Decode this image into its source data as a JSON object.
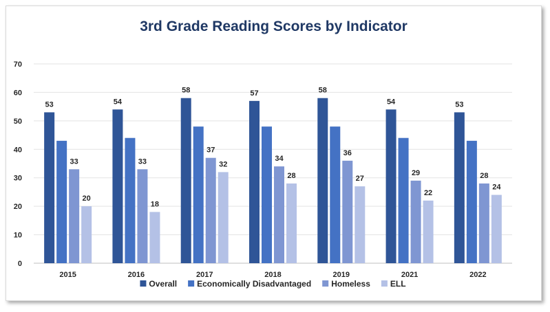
{
  "chart_data": {
    "type": "bar",
    "title": "3rd Grade Reading Scores by Indicator",
    "xlabel": "",
    "ylabel": "",
    "ylim": [
      0,
      70
    ],
    "yticks": [
      0,
      10,
      20,
      30,
      40,
      50,
      60,
      70
    ],
    "grid": true,
    "legend_position": "bottom",
    "categories": [
      "2015",
      "2016",
      "2017",
      "2018",
      "2019",
      "2021",
      "2022"
    ],
    "series": [
      {
        "name": "Overall",
        "color": "#2f5597",
        "values": [
          53,
          54,
          58,
          57,
          58,
          54,
          53
        ],
        "labeled": true
      },
      {
        "name": "Economically Disadvantaged",
        "color": "#4472c4",
        "values": [
          43,
          44,
          48,
          48,
          48,
          44,
          43
        ],
        "labeled": false
      },
      {
        "name": "Homeless",
        "color": "#7f96d2",
        "values": [
          33,
          33,
          37,
          34,
          36,
          29,
          28
        ],
        "labeled": true
      },
      {
        "name": "ELL",
        "color": "#b4c1e6",
        "values": [
          20,
          18,
          32,
          28,
          27,
          22,
          24
        ],
        "labeled": true
      }
    ]
  }
}
